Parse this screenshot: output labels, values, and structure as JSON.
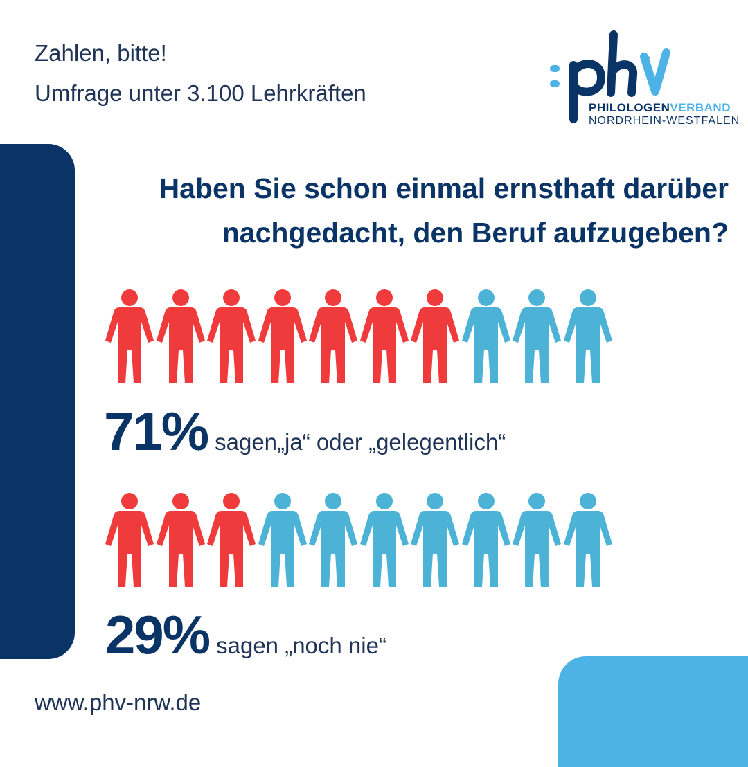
{
  "header": {
    "line1": "Zahlen, bitte!",
    "line2": "Umfrage unter 3.100 Lehrkräften"
  },
  "logo": {
    "mark": ":phv",
    "name_part1": "PHILOLOGEN",
    "name_part2": "VERBAND",
    "region": "NORDRHEIN-WESTFALEN"
  },
  "question": {
    "line1": "Haben Sie schon einmal ernsthaft darüber",
    "line2": "nachgedacht, den Beruf aufzugeben?"
  },
  "colors": {
    "highlight": "#ef3b3b",
    "rest": "#4db3d6",
    "navy": "#0b3466",
    "accent_blue": "#4db3e6"
  },
  "chart_data": {
    "type": "pictogram",
    "icons_per_row": 10,
    "series": [
      {
        "value": 71,
        "highlighted_icons": 7,
        "percent_label": "71%",
        "label": "sagen„ja“ oder „gelegentlich“"
      },
      {
        "value": 29,
        "highlighted_icons": 3,
        "percent_label": "29%",
        "label": "sagen „noch nie“"
      }
    ]
  },
  "footer": {
    "url": "www.phv-nrw.de"
  }
}
